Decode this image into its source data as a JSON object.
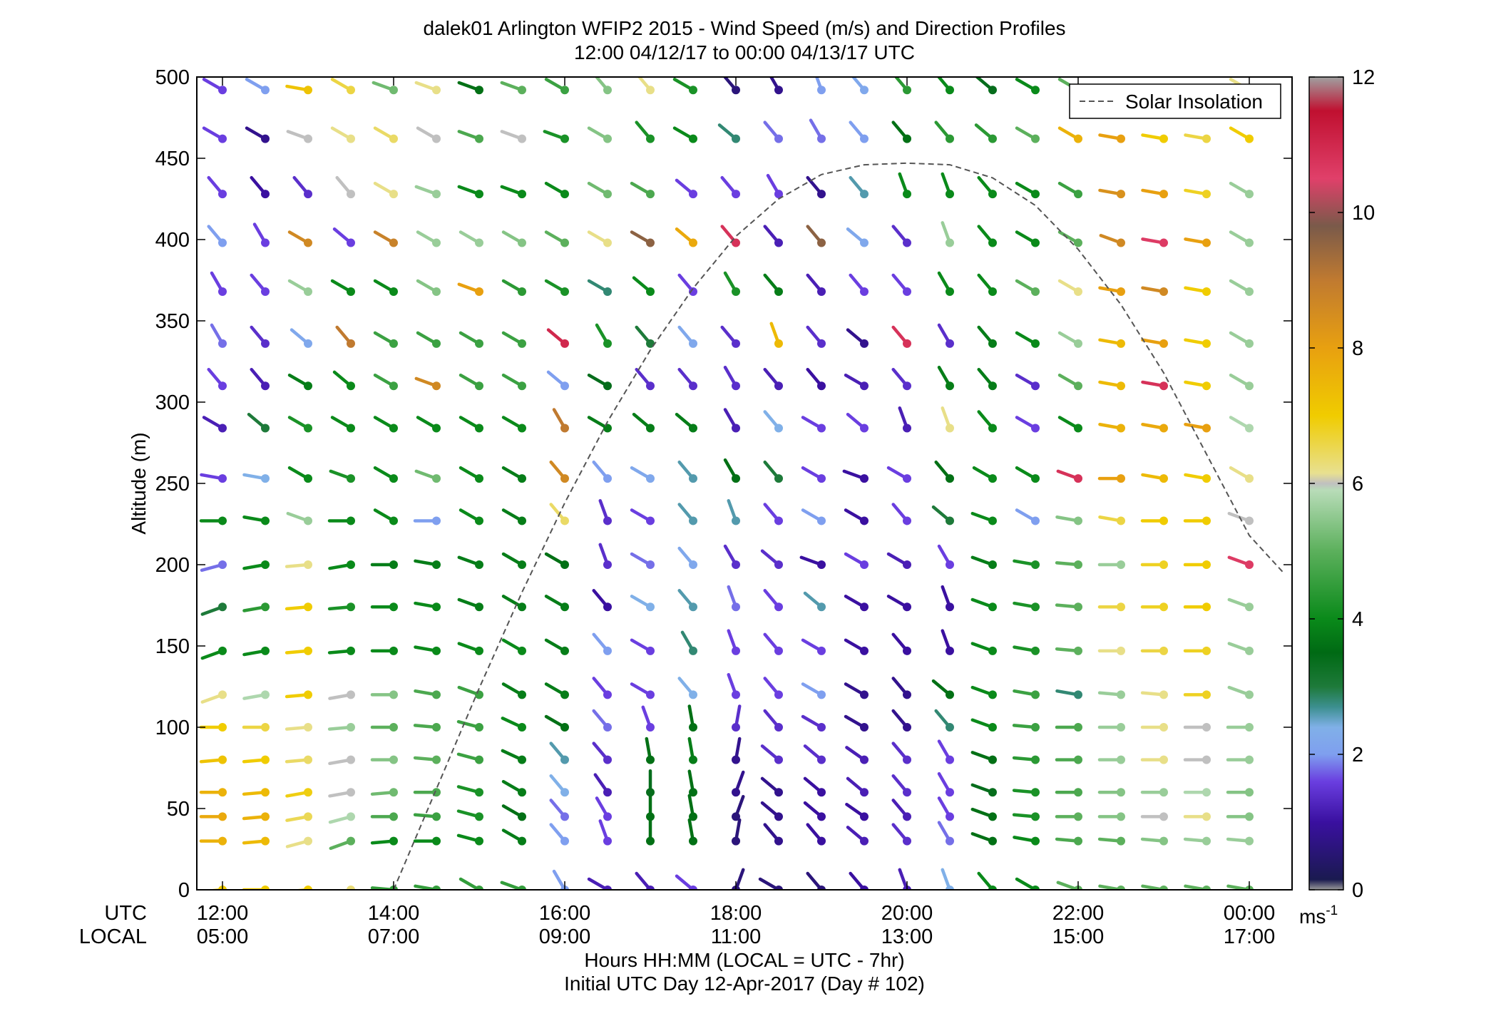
{
  "chart_data": {
    "type": "wind-barb-profile",
    "title": "dalek01 Arlington WFIP2 2015 - Wind Speed (m/s) and Direction Profiles",
    "subtitle": "12:00 04/12/17 to 00:00 04/13/17  UTC",
    "ylabel": "Altitude (m)",
    "xlabel": "Hours HH:MM  (LOCAL = UTC - 7hr)",
    "xlabel2": "Initial UTC Day 12-Apr-2017 (Day # 102)",
    "xrow_labels": [
      "UTC",
      "LOCAL"
    ],
    "x_ticks_utc": [
      "12:00",
      "14:00",
      "16:00",
      "18:00",
      "20:00",
      "22:00",
      "00:00"
    ],
    "x_ticks_local": [
      "05:00",
      "07:00",
      "09:00",
      "11:00",
      "13:00",
      "15:00",
      "17:00"
    ],
    "x_tick_hours": [
      12,
      14,
      16,
      18,
      20,
      22,
      24
    ],
    "xlim_hours": [
      11.7,
      24.5
    ],
    "ylim": [
      0,
      500
    ],
    "y_ticks": [
      0,
      50,
      100,
      150,
      200,
      250,
      300,
      350,
      400,
      450,
      500
    ],
    "legend": {
      "label": "Solar Insolation",
      "position": "top-right"
    },
    "solar_insolation": {
      "hours": [
        14.0,
        14.5,
        15.0,
        15.5,
        16.0,
        16.5,
        17.0,
        17.5,
        18.0,
        18.5,
        19.0,
        19.5,
        20.0,
        20.5,
        21.0,
        21.5,
        22.0,
        22.5,
        23.0,
        23.5,
        24.0,
        24.4
      ],
      "altitude_scaled": [
        0,
        62,
        124,
        183,
        238,
        288,
        332,
        370,
        402,
        425,
        440,
        446,
        447,
        446,
        438,
        421,
        394,
        360,
        318,
        268,
        218,
        195
      ]
    },
    "colorbar": {
      "min": 0,
      "max": 12,
      "ticks": [
        0,
        2,
        4,
        6,
        8,
        10,
        12
      ],
      "unit": "ms",
      "unit_exponent": "-1",
      "stops": [
        {
          "v": 0.0,
          "c": "#9a9a9a"
        },
        {
          "v": 0.15,
          "c": "#1a1a50"
        },
        {
          "v": 1.0,
          "c": "#3a10a0"
        },
        {
          "v": 1.6,
          "c": "#6a3ee0"
        },
        {
          "v": 2.0,
          "c": "#7f9fef"
        },
        {
          "v": 2.4,
          "c": "#80b0e8"
        },
        {
          "v": 2.7,
          "c": "#3c8f8f"
        },
        {
          "v": 3.0,
          "c": "#1e7a3a"
        },
        {
          "v": 3.5,
          "c": "#006a14"
        },
        {
          "v": 4.0,
          "c": "#0a8a1a"
        },
        {
          "v": 5.0,
          "c": "#5cb05c"
        },
        {
          "v": 5.9,
          "c": "#b8dcb8"
        },
        {
          "v": 6.0,
          "c": "#c0c0c0"
        },
        {
          "v": 6.15,
          "c": "#e8e090"
        },
        {
          "v": 7.0,
          "c": "#f0cc00"
        },
        {
          "v": 8.0,
          "c": "#e8a010"
        },
        {
          "v": 9.0,
          "c": "#c07a30"
        },
        {
          "v": 9.8,
          "c": "#7a5a4a"
        },
        {
          "v": 10.5,
          "c": "#e0406a"
        },
        {
          "v": 11.5,
          "c": "#c01030"
        },
        {
          "v": 12.0,
          "c": "#a0a0a0"
        }
      ]
    },
    "heights_m": [
      0,
      30,
      45,
      60,
      80,
      100,
      120,
      147,
      174,
      200,
      227,
      253,
      284,
      310,
      336,
      368,
      398,
      428,
      462,
      492
    ],
    "times_hours": [
      12.0,
      12.5,
      13.0,
      13.5,
      14.0,
      14.5,
      15.0,
      15.5,
      16.0,
      16.5,
      17.0,
      17.5,
      18.0,
      18.5,
      19.0,
      19.5,
      20.0,
      20.5,
      21.0,
      21.5,
      22.0,
      22.5,
      23.0,
      23.5,
      24.0
    ],
    "speed_ms": [
      [
        7.0,
        7.0,
        7.0,
        6.3,
        4.5,
        4.5,
        4.5,
        4.5,
        2.0,
        1.2,
        1.2,
        1.6,
        0.6,
        0.6,
        0.6,
        1.0,
        1.2,
        2.4,
        4.0,
        4.0,
        5.0,
        5.0,
        5.0,
        5.0,
        5.0
      ],
      [
        7.6,
        7.4,
        6.2,
        5.0,
        4.0,
        4.0,
        4.0,
        3.8,
        2.0,
        1.6,
        3.6,
        3.6,
        0.6,
        0.8,
        1.0,
        1.2,
        1.4,
        1.8,
        3.6,
        4.0,
        4.8,
        5.0,
        5.4,
        5.6,
        5.6
      ],
      [
        7.8,
        7.6,
        6.5,
        5.8,
        4.8,
        4.6,
        4.2,
        3.6,
        1.8,
        1.6,
        3.6,
        3.6,
        0.6,
        0.8,
        1.0,
        1.0,
        1.2,
        1.6,
        3.6,
        4.2,
        5.0,
        5.4,
        6.0,
        6.2,
        5.4
      ],
      [
        7.6,
        7.4,
        6.9,
        6.0,
        5.2,
        4.8,
        4.2,
        3.8,
        2.4,
        1.2,
        3.4,
        3.6,
        0.8,
        0.8,
        1.0,
        1.2,
        1.4,
        1.6,
        3.4,
        4.2,
        4.8,
        5.4,
        5.6,
        5.8,
        5.4
      ],
      [
        7.2,
        7.0,
        6.4,
        6.0,
        5.4,
        5.0,
        4.6,
        3.8,
        2.6,
        1.4,
        3.6,
        3.8,
        0.8,
        1.4,
        1.4,
        1.2,
        1.4,
        1.6,
        3.6,
        4.4,
        4.8,
        5.6,
        6.2,
        6.0,
        5.6
      ],
      [
        7.0,
        6.6,
        6.2,
        5.6,
        5.0,
        4.8,
        4.6,
        4.0,
        3.6,
        1.8,
        1.6,
        3.6,
        1.4,
        1.4,
        1.4,
        0.8,
        0.8,
        2.8,
        4.0,
        4.6,
        4.8,
        5.6,
        6.2,
        6.0,
        5.6
      ],
      [
        6.2,
        5.8,
        7.0,
        6.0,
        5.4,
        4.8,
        4.6,
        3.8,
        3.8,
        1.6,
        1.6,
        2.4,
        1.6,
        1.6,
        2.0,
        0.8,
        0.8,
        3.6,
        4.0,
        4.6,
        2.8,
        5.6,
        6.2,
        6.8,
        5.6
      ],
      [
        4.0,
        4.0,
        7.0,
        4.0,
        4.0,
        4.0,
        4.0,
        4.0,
        3.8,
        2.0,
        1.6,
        2.8,
        1.6,
        1.6,
        1.6,
        1.0,
        1.0,
        1.0,
        4.0,
        4.2,
        5.0,
        6.2,
        6.6,
        6.8,
        5.6
      ],
      [
        3.0,
        4.4,
        7.0,
        4.2,
        4.0,
        4.0,
        3.8,
        3.8,
        3.8,
        1.0,
        2.4,
        2.6,
        1.8,
        1.6,
        2.6,
        1.0,
        1.0,
        1.0,
        4.0,
        4.2,
        5.0,
        6.6,
        6.8,
        7.0,
        5.6
      ],
      [
        1.8,
        4.0,
        6.2,
        4.0,
        3.8,
        3.8,
        3.8,
        3.8,
        3.6,
        1.4,
        1.8,
        2.2,
        1.4,
        1.4,
        1.0,
        1.6,
        1.2,
        1.6,
        3.8,
        4.2,
        5.0,
        5.6,
        6.8,
        7.0,
        10.6
      ],
      [
        4.0,
        4.0,
        5.6,
        4.0,
        4.0,
        2.0,
        4.0,
        3.8,
        6.4,
        1.4,
        1.6,
        2.6,
        2.6,
        1.6,
        2.0,
        1.0,
        1.6,
        3.0,
        4.0,
        2.0,
        5.4,
        6.6,
        7.0,
        7.0,
        6.0
      ],
      [
        1.6,
        2.4,
        4.0,
        4.2,
        4.0,
        5.2,
        4.0,
        3.8,
        8.6,
        2.0,
        2.2,
        2.6,
        3.6,
        3.0,
        1.6,
        1.0,
        1.6,
        3.6,
        4.0,
        4.0,
        10.8,
        8.0,
        7.4,
        7.0,
        6.2
      ],
      [
        1.2,
        3.0,
        4.2,
        4.0,
        4.0,
        4.0,
        4.0,
        4.0,
        9.0,
        3.8,
        3.8,
        3.8,
        1.2,
        2.4,
        1.6,
        1.6,
        1.2,
        6.2,
        4.0,
        1.6,
        4.0,
        7.6,
        7.8,
        8.0,
        5.8
      ],
      [
        1.6,
        1.2,
        3.8,
        4.0,
        4.6,
        8.6,
        4.6,
        4.6,
        2.0,
        3.4,
        1.4,
        1.4,
        1.4,
        1.2,
        1.0,
        1.2,
        1.4,
        3.8,
        3.8,
        1.4,
        5.0,
        7.4,
        10.8,
        7.0,
        5.6
      ],
      [
        1.8,
        1.4,
        2.2,
        9.0,
        4.6,
        4.6,
        4.6,
        4.6,
        11.0,
        4.2,
        3.0,
        2.2,
        1.4,
        7.4,
        1.4,
        0.8,
        10.8,
        1.4,
        3.8,
        4.0,
        5.6,
        7.4,
        8.0,
        7.0,
        5.6
      ],
      [
        1.6,
        1.6,
        5.6,
        4.0,
        4.0,
        5.4,
        8.0,
        4.4,
        4.2,
        2.8,
        4.0,
        1.6,
        4.2,
        3.8,
        1.2,
        1.6,
        1.6,
        4.0,
        4.0,
        5.0,
        6.2,
        8.0,
        8.6,
        7.0,
        5.6
      ],
      [
        2.0,
        1.6,
        8.6,
        1.6,
        8.8,
        5.6,
        5.6,
        5.4,
        5.0,
        6.2,
        9.6,
        7.8,
        10.8,
        1.2,
        9.6,
        2.2,
        1.4,
        5.6,
        4.0,
        4.0,
        5.0,
        8.6,
        10.6,
        8.0,
        5.6
      ],
      [
        1.6,
        1.0,
        1.4,
        6.0,
        6.2,
        5.6,
        4.0,
        4.0,
        4.0,
        5.2,
        4.8,
        1.6,
        1.6,
        1.6,
        0.8,
        2.6,
        4.0,
        4.0,
        4.0,
        4.0,
        4.6,
        8.4,
        8.0,
        6.8,
        5.6
      ],
      [
        1.6,
        0.8,
        6.0,
        6.2,
        6.4,
        6.0,
        4.8,
        6.0,
        4.2,
        5.4,
        4.2,
        4.0,
        2.8,
        1.8,
        1.8,
        2.0,
        3.6,
        4.4,
        4.4,
        5.0,
        7.6,
        8.0,
        7.0,
        6.6,
        7.0
      ],
      [
        1.6,
        2.0,
        7.2,
        6.6,
        5.2,
        6.2,
        3.6,
        5.0,
        4.6,
        5.4,
        6.2,
        4.2,
        0.6,
        0.8,
        2.0,
        2.2,
        4.4,
        4.0,
        3.4,
        4.0,
        5.0,
        6.0,
        7.0,
        6.0,
        6.2
      ]
    ],
    "direction_deg": [
      [
        265,
        270,
        265,
        250,
        275,
        280,
        300,
        290,
        330,
        300,
        320,
        310,
        20,
        300,
        320,
        320,
        340,
        340,
        320,
        300,
        290,
        280,
        280,
        280,
        280
      ],
      [
        270,
        265,
        255,
        250,
        265,
        270,
        285,
        300,
        320,
        340,
        0,
        350,
        10,
        320,
        320,
        310,
        320,
        330,
        290,
        280,
        275,
        275,
        275,
        275,
        275
      ],
      [
        270,
        265,
        260,
        255,
        270,
        275,
        285,
        300,
        320,
        330,
        0,
        350,
        20,
        310,
        310,
        305,
        320,
        330,
        290,
        275,
        270,
        270,
        270,
        270,
        270
      ],
      [
        270,
        265,
        260,
        260,
        265,
        270,
        285,
        300,
        320,
        325,
        0,
        350,
        20,
        310,
        310,
        310,
        320,
        330,
        290,
        275,
        270,
        270,
        270,
        270,
        270
      ],
      [
        265,
        265,
        265,
        260,
        270,
        275,
        285,
        295,
        320,
        320,
        350,
        350,
        10,
        310,
        310,
        305,
        320,
        330,
        290,
        275,
        270,
        270,
        270,
        270,
        270
      ],
      [
        270,
        270,
        265,
        265,
        270,
        275,
        285,
        295,
        300,
        320,
        340,
        350,
        10,
        320,
        300,
        300,
        320,
        320,
        290,
        275,
        270,
        270,
        270,
        270,
        270
      ],
      [
        250,
        260,
        265,
        260,
        270,
        280,
        290,
        300,
        300,
        320,
        300,
        320,
        340,
        320,
        300,
        300,
        320,
        310,
        290,
        280,
        280,
        275,
        275,
        270,
        290
      ],
      [
        250,
        260,
        265,
        265,
        270,
        280,
        290,
        300,
        300,
        320,
        300,
        330,
        340,
        320,
        300,
        300,
        320,
        340,
        290,
        280,
        275,
        270,
        270,
        270,
        290
      ],
      [
        250,
        260,
        265,
        265,
        270,
        280,
        290,
        300,
        300,
        320,
        300,
        320,
        340,
        320,
        310,
        300,
        300,
        340,
        290,
        280,
        275,
        270,
        270,
        270,
        290
      ],
      [
        255,
        260,
        265,
        260,
        270,
        280,
        290,
        300,
        300,
        340,
        300,
        320,
        330,
        310,
        290,
        300,
        300,
        330,
        290,
        280,
        275,
        270,
        270,
        270,
        290
      ],
      [
        270,
        280,
        290,
        270,
        300,
        270,
        300,
        300,
        320,
        340,
        300,
        320,
        340,
        320,
        300,
        300,
        320,
        310,
        290,
        300,
        280,
        280,
        270,
        270,
        290
      ],
      [
        280,
        280,
        300,
        290,
        300,
        290,
        300,
        300,
        320,
        320,
        300,
        320,
        330,
        320,
        300,
        290,
        300,
        320,
        300,
        300,
        290,
        270,
        280,
        280,
        300
      ],
      [
        300,
        310,
        300,
        300,
        300,
        300,
        300,
        300,
        330,
        300,
        310,
        310,
        330,
        320,
        300,
        310,
        340,
        340,
        320,
        300,
        300,
        280,
        280,
        280,
        300
      ],
      [
        320,
        320,
        300,
        310,
        300,
        290,
        300,
        300,
        310,
        300,
        320,
        320,
        330,
        320,
        320,
        300,
        320,
        330,
        320,
        300,
        300,
        280,
        280,
        280,
        300
      ],
      [
        330,
        320,
        310,
        320,
        300,
        300,
        300,
        300,
        310,
        330,
        320,
        320,
        320,
        340,
        320,
        310,
        320,
        330,
        320,
        300,
        300,
        280,
        280,
        280,
        300
      ],
      [
        330,
        320,
        300,
        300,
        300,
        300,
        290,
        300,
        300,
        300,
        310,
        320,
        330,
        320,
        320,
        320,
        320,
        330,
        320,
        300,
        300,
        280,
        280,
        280,
        300
      ],
      [
        320,
        330,
        300,
        310,
        300,
        300,
        300,
        300,
        300,
        300,
        300,
        310,
        320,
        320,
        320,
        310,
        320,
        340,
        320,
        300,
        300,
        290,
        280,
        280,
        300
      ],
      [
        320,
        320,
        320,
        320,
        300,
        290,
        290,
        290,
        300,
        300,
        300,
        310,
        320,
        330,
        320,
        320,
        340,
        340,
        320,
        300,
        300,
        280,
        280,
        280,
        300
      ],
      [
        300,
        300,
        290,
        300,
        300,
        300,
        290,
        290,
        290,
        300,
        320,
        300,
        310,
        320,
        330,
        320,
        320,
        320,
        310,
        300,
        300,
        280,
        280,
        280,
        300
      ],
      [
        300,
        300,
        280,
        300,
        290,
        290,
        290,
        290,
        300,
        320,
        320,
        300,
        320,
        330,
        340,
        320,
        320,
        320,
        310,
        300,
        300,
        280,
        280,
        280,
        300
      ]
    ]
  }
}
